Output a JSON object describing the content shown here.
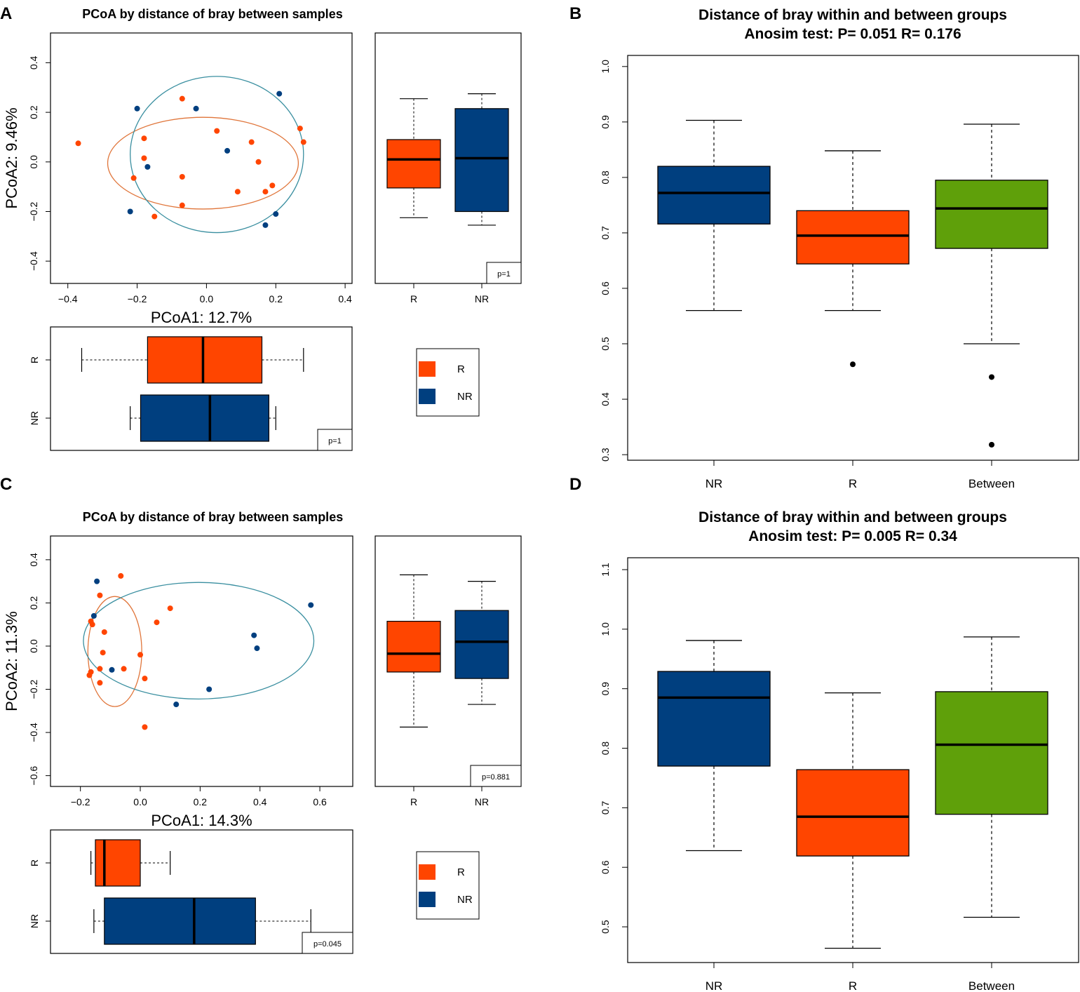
{
  "colors": {
    "R": "#ff4500",
    "NR": "#003f7f",
    "Between": "#5fa00a",
    "R_ellipse": "#e0753a",
    "NR_ellipse": "#3a8fa0"
  },
  "chart_data": [
    {
      "panel": "A",
      "type": "scatter",
      "title": "PCoA by distance of bray between samples",
      "xlabel": "PCoA1: 12.7%",
      "ylabel": "PCoA2: 9.46%",
      "xlim": [
        -0.45,
        0.42
      ],
      "ylim": [
        -0.49,
        0.52
      ],
      "xticks": [
        -0.4,
        -0.2,
        0.0,
        0.2,
        0.4
      ],
      "xtick_labels": [
        "−0.4",
        "−0.2",
        "0.0",
        "0.2",
        "0.4"
      ],
      "yticks": [
        -0.4,
        -0.2,
        0.0,
        0.2,
        0.4
      ],
      "ytick_labels": [
        "−0.4",
        "−0.2",
        "0.0",
        "0.2",
        "0.4"
      ],
      "series": [
        {
          "name": "R",
          "points": [
            [
              -0.37,
              0.075
            ],
            [
              -0.07,
              0.255
            ],
            [
              -0.18,
              0.095
            ],
            [
              -0.18,
              0.015
            ],
            [
              -0.21,
              -0.065
            ],
            [
              -0.07,
              -0.06
            ],
            [
              0.03,
              0.125
            ],
            [
              0.09,
              -0.12
            ],
            [
              0.13,
              0.08
            ],
            [
              0.15,
              0.0
            ],
            [
              0.17,
              -0.12
            ],
            [
              0.19,
              -0.095
            ],
            [
              0.27,
              0.135
            ],
            [
              0.28,
              0.08
            ],
            [
              -0.15,
              -0.22
            ],
            [
              -0.07,
              -0.175
            ]
          ]
        },
        {
          "name": "NR",
          "points": [
            [
              -0.2,
              0.215
            ],
            [
              -0.03,
              0.215
            ],
            [
              0.21,
              0.275
            ],
            [
              0.06,
              0.045
            ],
            [
              -0.17,
              -0.02
            ],
            [
              -0.22,
              -0.2
            ],
            [
              0.2,
              -0.21
            ],
            [
              0.17,
              -0.255
            ]
          ]
        }
      ],
      "ellipses": [
        {
          "name": "R",
          "cx": -0.01,
          "cy": -0.005,
          "rx": 0.275,
          "ry": 0.185
        },
        {
          "name": "NR",
          "cx": 0.03,
          "cy": 0.03,
          "rx": 0.25,
          "ry": 0.315
        }
      ],
      "side_box": {
        "categories": [
          "R",
          "NR"
        ],
        "ylim": [
          -0.49,
          0.52
        ],
        "boxes": [
          {
            "name": "R",
            "min": -0.225,
            "q1": -0.105,
            "median": 0.01,
            "q3": 0.09,
            "max": 0.255
          },
          {
            "name": "NR",
            "min": -0.255,
            "q1": -0.2,
            "median": 0.015,
            "q3": 0.215,
            "max": 0.275
          }
        ],
        "p_label": "p=1"
      },
      "bottom_box": {
        "categories": [
          "R",
          "NR"
        ],
        "xlim": [
          -0.45,
          0.42
        ],
        "boxes": [
          {
            "name": "R",
            "min": -0.36,
            "q1": -0.17,
            "median": -0.01,
            "q3": 0.16,
            "max": 0.28
          },
          {
            "name": "NR",
            "min": -0.22,
            "q1": -0.19,
            "median": 0.01,
            "q3": 0.18,
            "max": 0.2
          }
        ],
        "p_label": "p=1"
      },
      "legend": [
        "R",
        "NR"
      ]
    },
    {
      "panel": "B",
      "type": "box",
      "title": "Distance of bray within and between groups",
      "subtitle": "Anosim test: P= 0.051  R= 0.176",
      "categories": [
        "NR",
        "R",
        "Between"
      ],
      "ylim": [
        0.29,
        1.02
      ],
      "yticks": [
        0.3,
        0.4,
        0.5,
        0.6,
        0.7,
        0.8,
        0.9,
        1.0
      ],
      "ytick_labels": [
        "0.3",
        "0.4",
        "0.5",
        "0.6",
        "0.7",
        "0.8",
        "0.9",
        "1.0"
      ],
      "boxes": [
        {
          "name": "NR",
          "min": 0.56,
          "q1": 0.716,
          "median": 0.772,
          "q3": 0.82,
          "max": 0.903,
          "outliers": []
        },
        {
          "name": "R",
          "min": 0.56,
          "q1": 0.644,
          "median": 0.695,
          "q3": 0.74,
          "max": 0.848,
          "outliers": [
            0.463
          ]
        },
        {
          "name": "Between",
          "min": 0.5,
          "q1": 0.672,
          "median": 0.744,
          "q3": 0.795,
          "max": 0.896,
          "outliers": [
            0.44,
            0.318
          ]
        }
      ]
    },
    {
      "panel": "C",
      "type": "scatter",
      "title": "PCoA by distance of bray between samples",
      "xlabel": "PCoA1: 14.3%",
      "ylabel": "PCoA2: 11.3%",
      "xlim": [
        -0.3,
        0.71
      ],
      "ylim": [
        -0.65,
        0.51
      ],
      "xticks": [
        -0.2,
        0.0,
        0.2,
        0.4,
        0.6
      ],
      "xtick_labels": [
        "−0.2",
        "0.0",
        "0.2",
        "0.4",
        "0.6"
      ],
      "yticks": [
        -0.6,
        -0.4,
        -0.2,
        0.0,
        0.2,
        0.4
      ],
      "ytick_labels": [
        "−0.6",
        "−0.4",
        "−0.2",
        "0.0",
        "0.2",
        "0.4"
      ],
      "series": [
        {
          "name": "R",
          "points": [
            [
              -0.065,
              0.325
            ],
            [
              -0.135,
              0.235
            ],
            [
              0.1,
              0.175
            ],
            [
              -0.165,
              0.115
            ],
            [
              -0.16,
              0.1
            ],
            [
              0.055,
              0.11
            ],
            [
              -0.12,
              0.065
            ],
            [
              -0.125,
              -0.03
            ],
            [
              0.0,
              -0.04
            ],
            [
              -0.055,
              -0.105
            ],
            [
              -0.135,
              -0.105
            ],
            [
              -0.165,
              -0.12
            ],
            [
              -0.17,
              -0.135
            ],
            [
              0.015,
              -0.15
            ],
            [
              -0.135,
              -0.17
            ],
            [
              0.015,
              -0.375
            ]
          ]
        },
        {
          "name": "NR",
          "points": [
            [
              -0.145,
              0.3
            ],
            [
              -0.155,
              0.14
            ],
            [
              0.57,
              0.19
            ],
            [
              0.38,
              0.05
            ],
            [
              0.39,
              -0.01
            ],
            [
              -0.095,
              -0.11
            ],
            [
              0.23,
              -0.2
            ],
            [
              0.12,
              -0.27
            ]
          ]
        }
      ],
      "ellipses": [
        {
          "name": "R",
          "cx": -0.085,
          "cy": -0.025,
          "rx": 0.09,
          "ry": 0.255
        },
        {
          "name": "NR",
          "cx": 0.195,
          "cy": 0.025,
          "rx": 0.385,
          "ry": 0.27
        }
      ],
      "side_box": {
        "categories": [
          "R",
          "NR"
        ],
        "ylim": [
          -0.65,
          0.51
        ],
        "boxes": [
          {
            "name": "R",
            "min": -0.375,
            "q1": -0.12,
            "median": -0.035,
            "q3": 0.115,
            "max": 0.33
          },
          {
            "name": "NR",
            "min": -0.27,
            "q1": -0.15,
            "median": 0.02,
            "q3": 0.165,
            "max": 0.3
          }
        ],
        "p_label": "p=0.881"
      },
      "bottom_box": {
        "categories": [
          "R",
          "NR"
        ],
        "xlim": [
          -0.3,
          0.71
        ],
        "boxes": [
          {
            "name": "R",
            "min": -0.165,
            "q1": -0.15,
            "median": -0.12,
            "q3": 0.0,
            "max": 0.1
          },
          {
            "name": "NR",
            "min": -0.155,
            "q1": -0.12,
            "median": 0.18,
            "q3": 0.385,
            "max": 0.57
          }
        ],
        "p_label": "p=0.045"
      },
      "legend": [
        "R",
        "NR"
      ]
    },
    {
      "panel": "D",
      "type": "box",
      "title": "Distance of bray within and between groups",
      "subtitle": "Anosim test: P= 0.005  R= 0.34",
      "categories": [
        "NR",
        "R",
        "Between"
      ],
      "ylim": [
        0.44,
        1.12
      ],
      "yticks": [
        0.5,
        0.6,
        0.7,
        0.8,
        0.9,
        1.0,
        1.1
      ],
      "ytick_labels": [
        "0.5",
        "0.6",
        "0.7",
        "0.8",
        "0.9",
        "1.0",
        "1.1"
      ],
      "boxes": [
        {
          "name": "NR",
          "min": 0.628,
          "q1": 0.77,
          "median": 0.885,
          "q3": 0.929,
          "max": 0.981,
          "outliers": []
        },
        {
          "name": "R",
          "min": 0.464,
          "q1": 0.619,
          "median": 0.685,
          "q3": 0.764,
          "max": 0.893,
          "outliers": []
        },
        {
          "name": "Between",
          "min": 0.516,
          "q1": 0.689,
          "median": 0.806,
          "q3": 0.895,
          "max": 0.987,
          "outliers": []
        }
      ]
    }
  ],
  "panel_labels": [
    "A",
    "B",
    "C",
    "D"
  ]
}
